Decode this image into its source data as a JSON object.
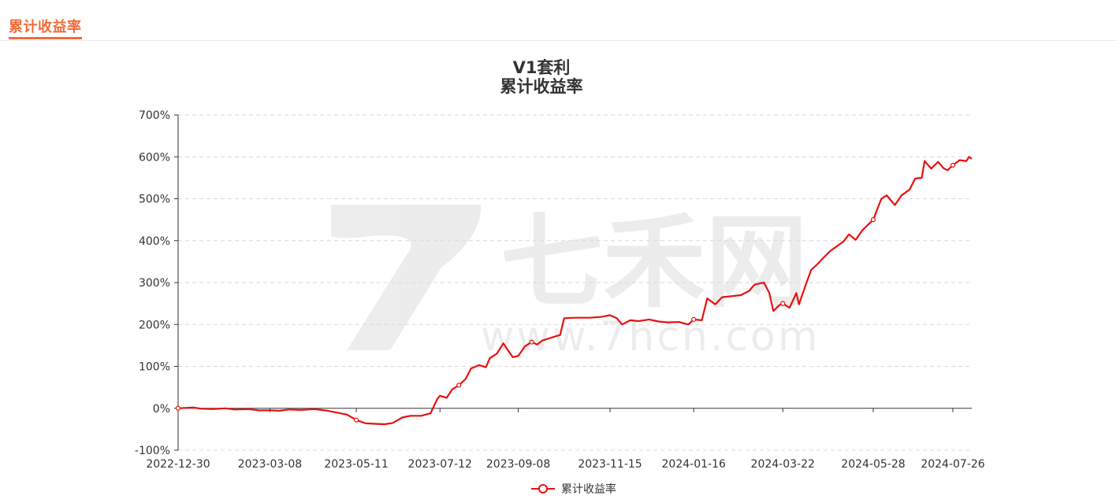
{
  "section": {
    "title": "累计收益率"
  },
  "chart_data": {
    "type": "line",
    "title": "V1套利",
    "subtitle": "累计收益率",
    "legend": {
      "entries": [
        "累计收益率"
      ],
      "position": "bottom-center"
    },
    "watermark": {
      "brand": "七禾网",
      "url": "www.7hcn.com"
    },
    "y_axis": {
      "min": -100,
      "max": 700,
      "step": 100,
      "tick_labels": [
        "-100%",
        "0%",
        "100%",
        "200%",
        "300%",
        "400%",
        "500%",
        "600%",
        "700%"
      ],
      "grid": true
    },
    "x_axis": {
      "start": "2022-12-30",
      "end": "2024-08-09",
      "tick_labels": [
        "2022-12-30",
        "2023-03-08",
        "2023-05-11",
        "2023-07-12",
        "2023-09-08",
        "2023-11-15",
        "2024-01-16",
        "2024-03-22",
        "2024-05-28",
        "2024-07-26"
      ]
    },
    "series": [
      {
        "name": "累计收益率",
        "color": "#e8110f",
        "points": [
          [
            "2022-12-30",
            0
          ],
          [
            "2023-01-05",
            1
          ],
          [
            "2023-01-10",
            2
          ],
          [
            "2023-01-16",
            -1
          ],
          [
            "2023-01-25",
            -2
          ],
          [
            "2023-02-03",
            0
          ],
          [
            "2023-02-10",
            -3
          ],
          [
            "2023-02-20",
            -2
          ],
          [
            "2023-02-28",
            -5
          ],
          [
            "2023-03-08",
            -5
          ],
          [
            "2023-03-15",
            -6
          ],
          [
            "2023-03-22",
            -3
          ],
          [
            "2023-03-31",
            -4
          ],
          [
            "2023-04-10",
            -2
          ],
          [
            "2023-04-20",
            -6
          ],
          [
            "2023-04-26",
            -10
          ],
          [
            "2023-05-04",
            -15
          ],
          [
            "2023-05-11",
            -28
          ],
          [
            "2023-05-18",
            -36
          ],
          [
            "2023-05-25",
            -37
          ],
          [
            "2023-06-01",
            -38
          ],
          [
            "2023-06-07",
            -35
          ],
          [
            "2023-06-14",
            -22
          ],
          [
            "2023-06-20",
            -18
          ],
          [
            "2023-06-28",
            -18
          ],
          [
            "2023-07-05",
            -12
          ],
          [
            "2023-07-10",
            22
          ],
          [
            "2023-07-12",
            30
          ],
          [
            "2023-07-17",
            25
          ],
          [
            "2023-07-21",
            45
          ],
          [
            "2023-07-26",
            55
          ],
          [
            "2023-07-31",
            70
          ],
          [
            "2023-08-04",
            95
          ],
          [
            "2023-08-10",
            103
          ],
          [
            "2023-08-15",
            98
          ],
          [
            "2023-08-18",
            120
          ],
          [
            "2023-08-23",
            130
          ],
          [
            "2023-08-28",
            155
          ],
          [
            "2023-08-31",
            140
          ],
          [
            "2023-09-04",
            122
          ],
          [
            "2023-09-08",
            125
          ],
          [
            "2023-09-13",
            148
          ],
          [
            "2023-09-18",
            158
          ],
          [
            "2023-09-22",
            152
          ],
          [
            "2023-09-26",
            162
          ],
          [
            "2023-10-09",
            175
          ],
          [
            "2023-10-12",
            215
          ],
          [
            "2023-10-20",
            216
          ],
          [
            "2023-10-31",
            216
          ],
          [
            "2023-11-08",
            218
          ],
          [
            "2023-11-15",
            222
          ],
          [
            "2023-11-20",
            215
          ],
          [
            "2023-11-24",
            200
          ],
          [
            "2023-11-30",
            210
          ],
          [
            "2023-12-06",
            208
          ],
          [
            "2023-12-14",
            212
          ],
          [
            "2023-12-21",
            207
          ],
          [
            "2023-12-28",
            205
          ],
          [
            "2024-01-05",
            206
          ],
          [
            "2024-01-12",
            200
          ],
          [
            "2024-01-16",
            212
          ],
          [
            "2024-01-22",
            210
          ],
          [
            "2024-01-26",
            262
          ],
          [
            "2024-02-01",
            248
          ],
          [
            "2024-02-06",
            265
          ],
          [
            "2024-02-20",
            270
          ],
          [
            "2024-02-26",
            280
          ],
          [
            "2024-03-01",
            295
          ],
          [
            "2024-03-05",
            298
          ],
          [
            "2024-03-08",
            300
          ],
          [
            "2024-03-12",
            275
          ],
          [
            "2024-03-15",
            232
          ],
          [
            "2024-03-19",
            245
          ],
          [
            "2024-03-22",
            250
          ],
          [
            "2024-03-27",
            240
          ],
          [
            "2024-04-01",
            275
          ],
          [
            "2024-04-03",
            248
          ],
          [
            "2024-04-08",
            295
          ],
          [
            "2024-04-12",
            330
          ],
          [
            "2024-04-17",
            345
          ],
          [
            "2024-04-22",
            362
          ],
          [
            "2024-04-26",
            375
          ],
          [
            "2024-05-06",
            398
          ],
          [
            "2024-05-10",
            415
          ],
          [
            "2024-05-15",
            402
          ],
          [
            "2024-05-20",
            425
          ],
          [
            "2024-05-28",
            450
          ],
          [
            "2024-06-03",
            500
          ],
          [
            "2024-06-07",
            508
          ],
          [
            "2024-06-13",
            485
          ],
          [
            "2024-06-18",
            508
          ],
          [
            "2024-06-24",
            522
          ],
          [
            "2024-06-28",
            548
          ],
          [
            "2024-07-03",
            550
          ],
          [
            "2024-07-05",
            590
          ],
          [
            "2024-07-10",
            572
          ],
          [
            "2024-07-15",
            588
          ],
          [
            "2024-07-19",
            573
          ],
          [
            "2024-07-22",
            568
          ],
          [
            "2024-07-26",
            580
          ],
          [
            "2024-07-31",
            592
          ],
          [
            "2024-08-05",
            590
          ],
          [
            "2024-08-07",
            600
          ],
          [
            "2024-08-09",
            595
          ]
        ],
        "markers": [
          "2022-12-30",
          "2023-05-11",
          "2023-07-26",
          "2023-09-18",
          "2024-01-16",
          "2024-03-22",
          "2024-05-28",
          "2024-07-26"
        ]
      }
    ]
  }
}
